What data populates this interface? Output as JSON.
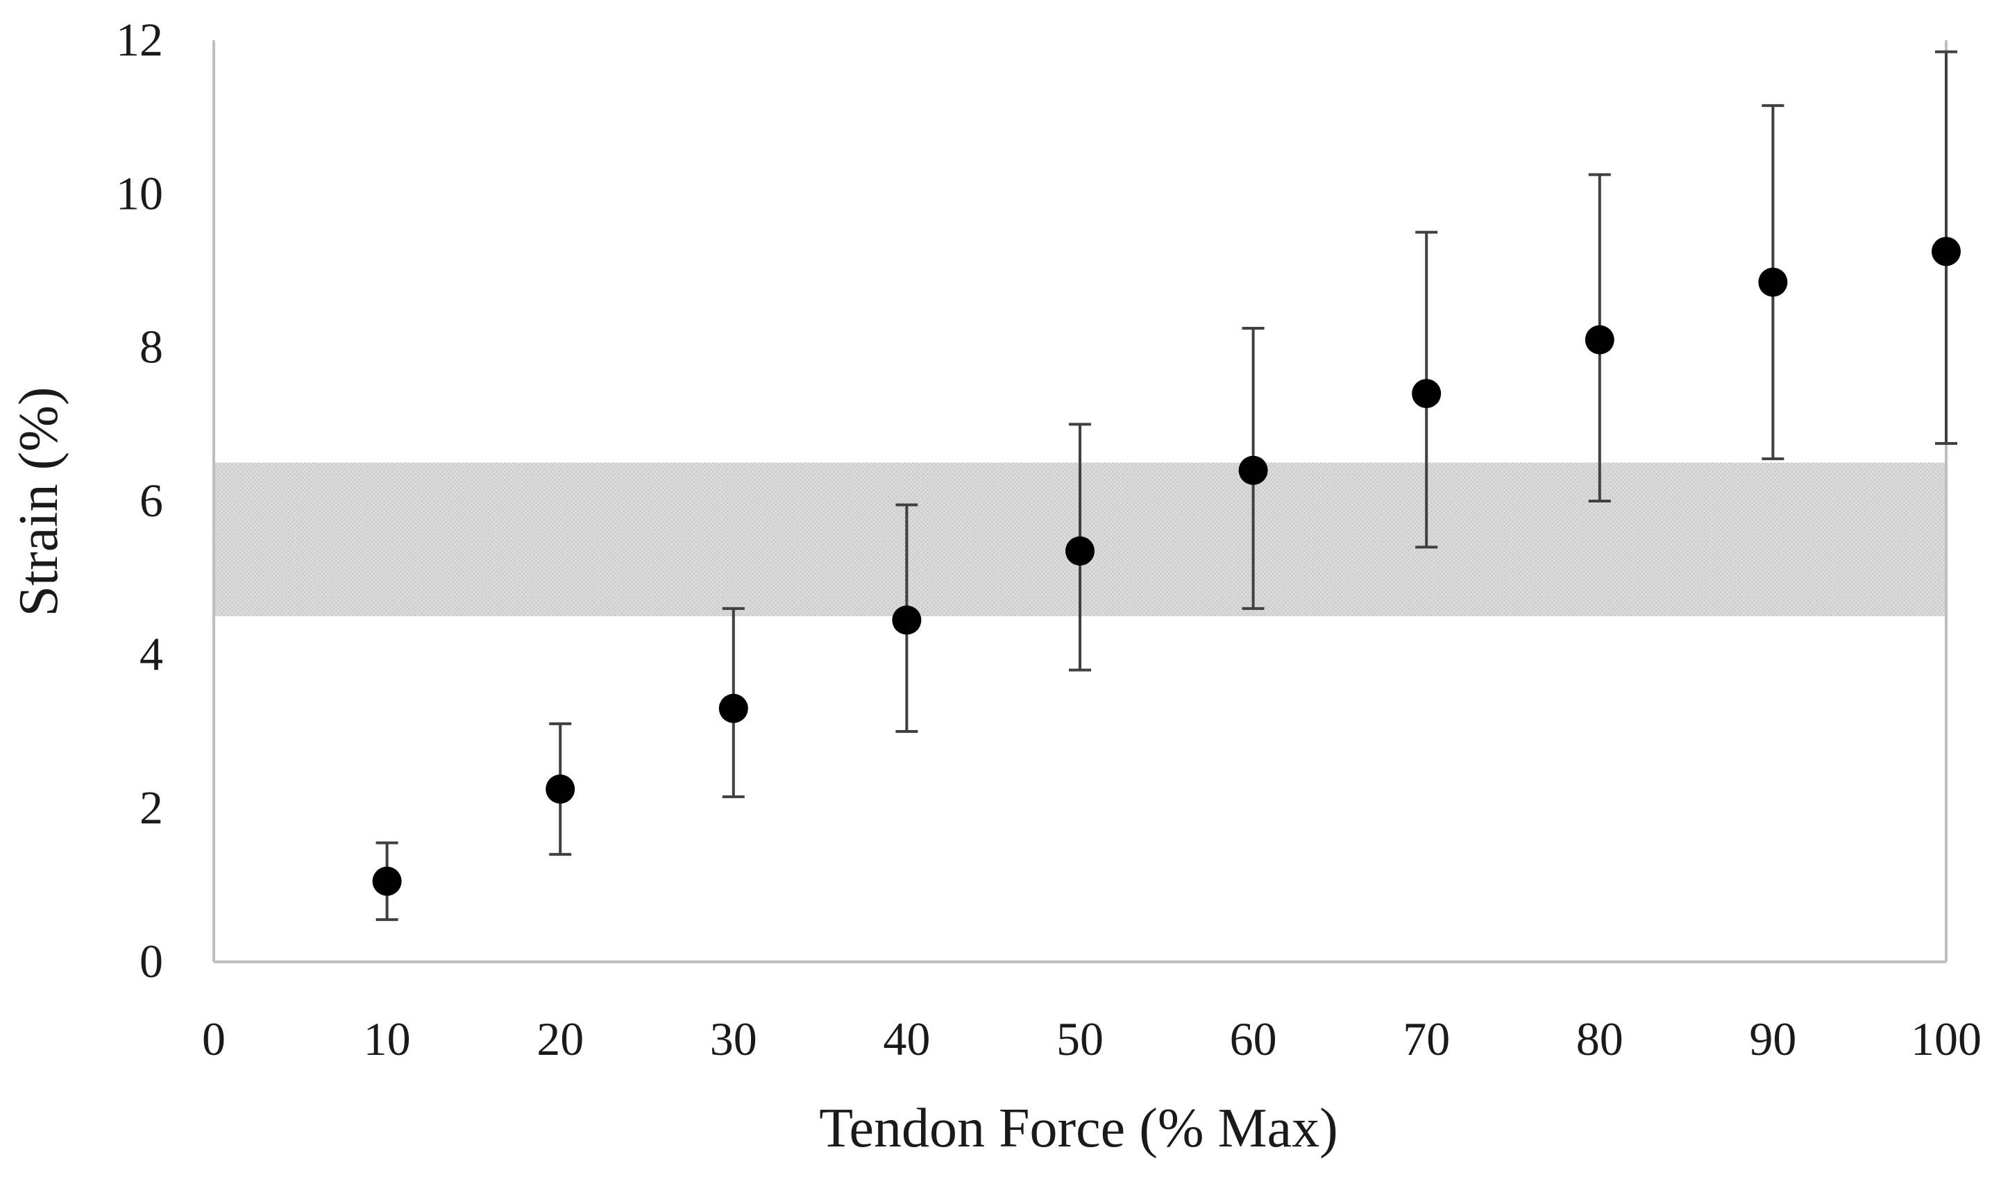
{
  "chart_data": {
    "type": "scatter",
    "title": "",
    "xlabel": "Tendon Force (% Max)",
    "ylabel": "Strain (%)",
    "xlim": [
      0,
      100
    ],
    "ylim": [
      0,
      12
    ],
    "x_ticks": [
      "0",
      "10",
      "20",
      "30",
      "40",
      "50",
      "60",
      "70",
      "80",
      "90",
      "100"
    ],
    "y_ticks": [
      "0",
      "2",
      "4",
      "6",
      "8",
      "10",
      "12"
    ],
    "grid": false,
    "legend": "none",
    "series": [
      {
        "x": [
          10,
          20,
          30,
          40,
          50,
          60,
          70,
          80,
          90,
          100
        ],
        "y": [
          1.05,
          2.25,
          3.3,
          4.45,
          5.35,
          6.4,
          7.4,
          8.1,
          8.85,
          9.25
        ],
        "error_low": [
          0.55,
          1.4,
          2.15,
          3.0,
          3.8,
          4.6,
          5.4,
          6.0,
          6.55,
          6.75
        ],
        "error_high": [
          1.55,
          3.1,
          4.6,
          5.95,
          7.0,
          8.25,
          9.5,
          10.25,
          11.15,
          11.85
        ]
      }
    ],
    "shaded_band": {
      "y_min": 4.5,
      "y_max": 6.5,
      "x_min": 0,
      "x_max": 100
    },
    "colors": {
      "marker": "#000000",
      "error_bar": "#404040",
      "band": "#d3d3d3",
      "axis": "#bfbfbf"
    }
  }
}
